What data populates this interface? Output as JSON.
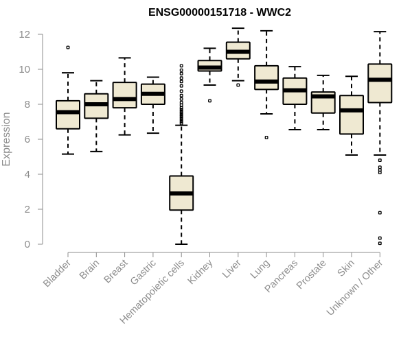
{
  "chart_data": {
    "type": "boxplot",
    "title": "ENSG00000151718 - WWC2",
    "xlabel": "",
    "ylabel": "Expression",
    "ylim": [
      0,
      12
    ],
    "yticks": [
      0,
      2,
      4,
      6,
      8,
      10,
      12
    ],
    "box_fill": "#efe9d2",
    "axis_color": "#8c8c8c",
    "categories": [
      "Bladder",
      "Brain",
      "Breast",
      "Gastric",
      "Hematopoietic cells",
      "Kidney",
      "Liver",
      "Lung",
      "Pancreas",
      "Prostate",
      "Skin",
      "Unknown / Other"
    ],
    "boxes": [
      {
        "label": "Bladder",
        "whisker_low": 5.15,
        "q1": 6.6,
        "median": 7.55,
        "q3": 8.2,
        "whisker_high": 9.8,
        "outliers": [
          11.25
        ]
      },
      {
        "label": "Brain",
        "whisker_low": 5.3,
        "q1": 7.2,
        "median": 8.0,
        "q3": 8.6,
        "whisker_high": 9.35,
        "outliers": []
      },
      {
        "label": "Breast",
        "whisker_low": 6.25,
        "q1": 7.8,
        "median": 8.3,
        "q3": 9.25,
        "whisker_high": 10.65,
        "outliers": []
      },
      {
        "label": "Gastric",
        "whisker_low": 6.35,
        "q1": 8.0,
        "median": 8.6,
        "q3": 9.15,
        "whisker_high": 9.55,
        "outliers": []
      },
      {
        "label": "Hematopoietic cells",
        "whisker_low": 0.0,
        "q1": 1.95,
        "median": 2.9,
        "q3": 3.9,
        "whisker_high": 6.8,
        "outliers": [
          10.2,
          9.95,
          9.75,
          9.5,
          9.3,
          9.05,
          8.75,
          8.5,
          8.3,
          8.1,
          7.95,
          7.8,
          7.7,
          7.6,
          7.5,
          7.4,
          7.3,
          7.2,
          7.1,
          7.0,
          6.9
        ]
      },
      {
        "label": "Kidney",
        "whisker_low": 9.1,
        "q1": 9.9,
        "median": 10.1,
        "q3": 10.5,
        "whisker_high": 11.2,
        "outliers": [
          8.2
        ]
      },
      {
        "label": "Liver",
        "whisker_low": 9.35,
        "q1": 10.6,
        "median": 11.0,
        "q3": 11.55,
        "whisker_high": 12.35,
        "outliers": [
          9.1
        ]
      },
      {
        "label": "Lung",
        "whisker_low": 7.45,
        "q1": 8.85,
        "median": 9.3,
        "q3": 10.2,
        "whisker_high": 12.2,
        "outliers": [
          6.1
        ]
      },
      {
        "label": "Pancreas",
        "whisker_low": 6.55,
        "q1": 8.0,
        "median": 8.8,
        "q3": 9.5,
        "whisker_high": 10.15,
        "outliers": []
      },
      {
        "label": "Prostate",
        "whisker_low": 6.55,
        "q1": 7.5,
        "median": 8.45,
        "q3": 8.7,
        "whisker_high": 9.65,
        "outliers": []
      },
      {
        "label": "Skin",
        "whisker_low": 5.1,
        "q1": 6.3,
        "median": 7.65,
        "q3": 8.5,
        "whisker_high": 9.6,
        "outliers": []
      },
      {
        "label": "Unknown / Other",
        "whisker_low": 5.1,
        "q1": 8.1,
        "median": 9.4,
        "q3": 10.3,
        "whisker_high": 12.15,
        "outliers": [
          4.8,
          4.4,
          4.25,
          4.1,
          1.8,
          0.35,
          0.05
        ]
      }
    ]
  }
}
